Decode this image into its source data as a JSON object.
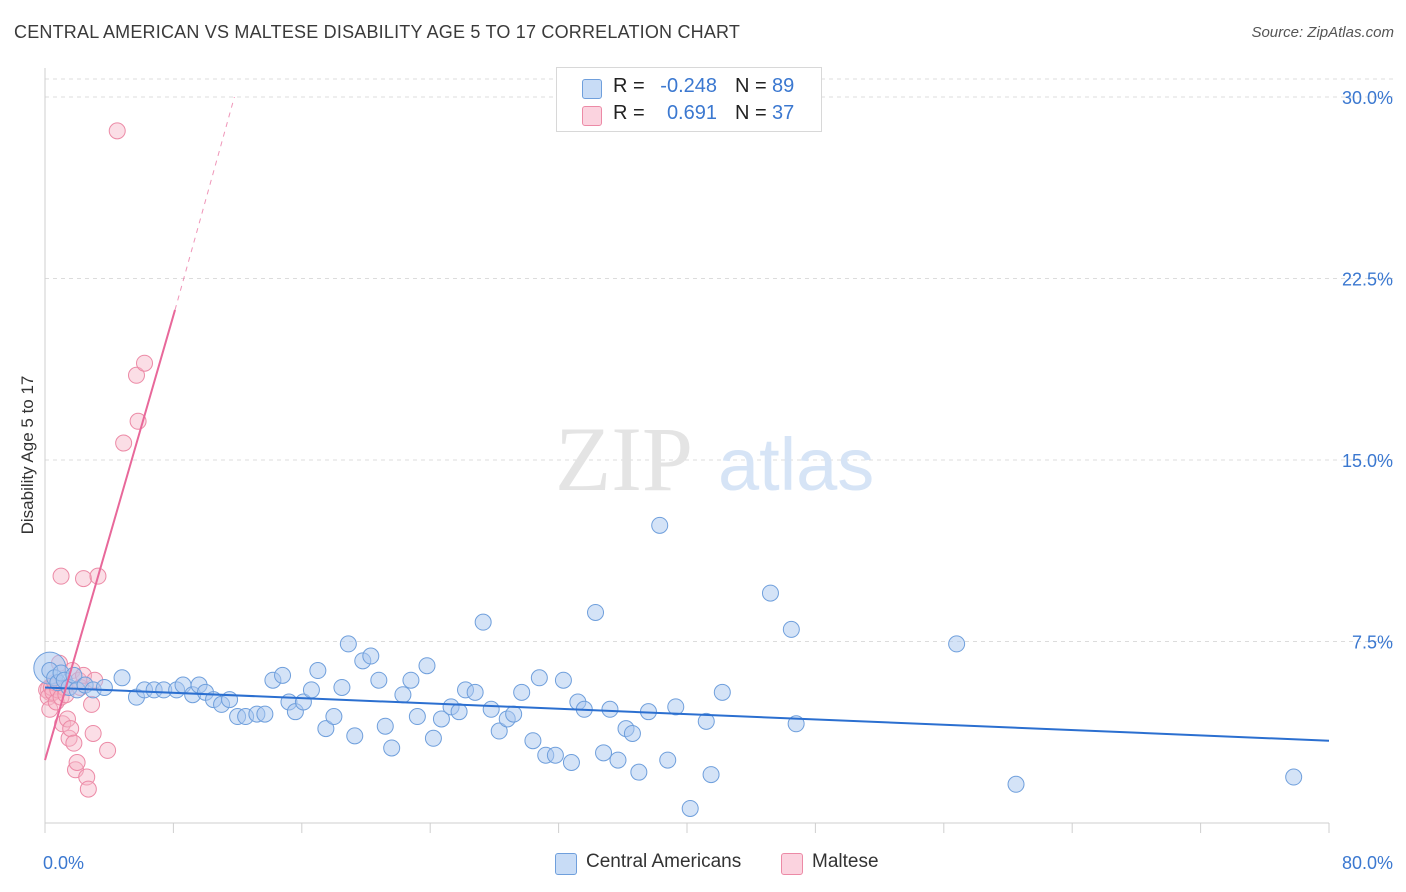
{
  "title": "CENTRAL AMERICAN VS MALTESE DISABILITY AGE 5 TO 17 CORRELATION CHART",
  "source": "Source: ZipAtlas.com",
  "watermark": {
    "zip": "ZIP",
    "atlas": "atlas"
  },
  "colors": {
    "blue_fill": "#a9c8f0",
    "blue_stroke": "#6f9fdc",
    "blue_line": "#2b6fd0",
    "pink_fill": "#f6b5c8",
    "pink_stroke": "#ec8aa6",
    "pink_line": "#e8689a",
    "grid": "#dcdcdc",
    "axis_text": "#3b78d0"
  },
  "legend_top": {
    "rows": [
      {
        "r_label": "R =",
        "r_value": "-0.248",
        "n_label": "N =",
        "n_value": "89"
      },
      {
        "r_label": "R =",
        "r_value": "0.691",
        "n_label": "N =",
        "n_value": "37"
      }
    ]
  },
  "legend_bottom": {
    "items": [
      "Central Americans",
      "Maltese"
    ]
  },
  "chart_data": {
    "type": "scatter",
    "title": "CENTRAL AMERICAN VS MALTESE DISABILITY AGE 5 TO 17 CORRELATION CHART",
    "xlabel": "",
    "ylabel": "Disability Age 5 to 17",
    "xlim": [
      0,
      80
    ],
    "ylim": [
      0,
      30.8
    ],
    "x_tick_labels": [
      "0.0%",
      "80.0%"
    ],
    "y_ticks": [
      7.5,
      15.0,
      22.5,
      30.0
    ],
    "y_tick_labels": [
      "7.5%",
      "15.0%",
      "22.5%",
      "30.0%"
    ],
    "grid": true,
    "legend_position": "top-center",
    "series": [
      {
        "name": "Central Americans",
        "r": -0.248,
        "n": 89,
        "trend": {
          "x": [
            0,
            80
          ],
          "y": [
            5.6,
            3.4
          ]
        },
        "points": [
          [
            0.3,
            6.3
          ],
          [
            0.6,
            6.0
          ],
          [
            0.8,
            5.8
          ],
          [
            1.0,
            6.2
          ],
          [
            1.2,
            5.9
          ],
          [
            1.5,
            5.6
          ],
          [
            1.8,
            6.1
          ],
          [
            2.0,
            5.5
          ],
          [
            2.5,
            5.7
          ],
          [
            3.0,
            5.5
          ],
          [
            3.7,
            5.6
          ],
          [
            4.8,
            6.0
          ],
          [
            5.7,
            5.2
          ],
          [
            6.2,
            5.5
          ],
          [
            6.8,
            5.5
          ],
          [
            7.4,
            5.5
          ],
          [
            8.2,
            5.5
          ],
          [
            8.6,
            5.7
          ],
          [
            9.2,
            5.3
          ],
          [
            9.6,
            5.7
          ],
          [
            10.0,
            5.4
          ],
          [
            10.5,
            5.1
          ],
          [
            11.0,
            4.9
          ],
          [
            11.5,
            5.1
          ],
          [
            12.0,
            4.4
          ],
          [
            12.5,
            4.4
          ],
          [
            13.2,
            4.5
          ],
          [
            13.7,
            4.5
          ],
          [
            14.2,
            5.9
          ],
          [
            14.8,
            6.1
          ],
          [
            15.2,
            5.0
          ],
          [
            15.6,
            4.6
          ],
          [
            16.1,
            5.0
          ],
          [
            16.6,
            5.5
          ],
          [
            17.0,
            6.3
          ],
          [
            17.5,
            3.9
          ],
          [
            18.0,
            4.4
          ],
          [
            18.5,
            5.6
          ],
          [
            18.9,
            7.4
          ],
          [
            19.3,
            3.6
          ],
          [
            19.8,
            6.7
          ],
          [
            20.3,
            6.9
          ],
          [
            20.8,
            5.9
          ],
          [
            21.2,
            4.0
          ],
          [
            21.6,
            3.1
          ],
          [
            22.3,
            5.3
          ],
          [
            22.8,
            5.9
          ],
          [
            23.2,
            4.4
          ],
          [
            23.8,
            6.5
          ],
          [
            24.2,
            3.5
          ],
          [
            24.7,
            4.3
          ],
          [
            25.3,
            4.8
          ],
          [
            25.8,
            4.6
          ],
          [
            26.2,
            5.5
          ],
          [
            26.8,
            5.4
          ],
          [
            27.3,
            8.3
          ],
          [
            27.8,
            4.7
          ],
          [
            28.3,
            3.8
          ],
          [
            28.8,
            4.3
          ],
          [
            29.2,
            4.5
          ],
          [
            29.7,
            5.4
          ],
          [
            30.4,
            3.4
          ],
          [
            30.8,
            6.0
          ],
          [
            31.2,
            2.8
          ],
          [
            31.8,
            2.8
          ],
          [
            32.3,
            5.9
          ],
          [
            32.8,
            2.5
          ],
          [
            33.2,
            5.0
          ],
          [
            33.6,
            4.7
          ],
          [
            34.3,
            8.7
          ],
          [
            34.8,
            2.9
          ],
          [
            35.2,
            4.7
          ],
          [
            35.7,
            2.6
          ],
          [
            36.2,
            3.9
          ],
          [
            36.6,
            3.7
          ],
          [
            37.0,
            2.1
          ],
          [
            37.6,
            4.6
          ],
          [
            38.3,
            12.3
          ],
          [
            38.8,
            2.6
          ],
          [
            39.3,
            4.8
          ],
          [
            40.2,
            0.6
          ],
          [
            41.2,
            4.2
          ],
          [
            41.5,
            2.0
          ],
          [
            42.2,
            5.4
          ],
          [
            45.2,
            9.5
          ],
          [
            46.5,
            8.0
          ],
          [
            46.8,
            4.1
          ],
          [
            56.8,
            7.4
          ],
          [
            60.5,
            1.6
          ],
          [
            77.8,
            1.9
          ]
        ]
      },
      {
        "name": "Maltese",
        "r": 0.691,
        "n": 37,
        "trend": {
          "x": [
            0,
            8.1
          ],
          "y": [
            2.6,
            21.2
          ]
        },
        "trend_extension": {
          "x": [
            8.1,
            11.8
          ],
          "y": [
            21.2,
            30.0
          ]
        },
        "points": [
          [
            0.1,
            5.5
          ],
          [
            0.2,
            5.2
          ],
          [
            0.3,
            4.7
          ],
          [
            0.4,
            5.6
          ],
          [
            0.5,
            5.4
          ],
          [
            0.6,
            5.8
          ],
          [
            0.7,
            5.0
          ],
          [
            0.8,
            5.5
          ],
          [
            0.9,
            6.6
          ],
          [
            1.0,
            5.2
          ],
          [
            1.1,
            4.1
          ],
          [
            1.2,
            5.6
          ],
          [
            1.3,
            5.3
          ],
          [
            1.4,
            4.3
          ],
          [
            1.5,
            3.5
          ],
          [
            1.6,
            3.9
          ],
          [
            1.7,
            6.3
          ],
          [
            1.8,
            3.3
          ],
          [
            1.9,
            2.2
          ],
          [
            2.0,
            2.5
          ],
          [
            2.1,
            5.9
          ],
          [
            2.2,
            5.6
          ],
          [
            2.4,
            6.1
          ],
          [
            2.6,
            1.9
          ],
          [
            2.7,
            1.4
          ],
          [
            2.9,
            4.9
          ],
          [
            3.0,
            3.7
          ],
          [
            3.1,
            5.9
          ],
          [
            1.0,
            10.2
          ],
          [
            2.4,
            10.1
          ],
          [
            3.3,
            10.2
          ],
          [
            3.9,
            3.0
          ],
          [
            4.5,
            28.6
          ],
          [
            4.9,
            15.7
          ],
          [
            5.7,
            18.5
          ],
          [
            5.8,
            16.6
          ],
          [
            6.2,
            19.0
          ]
        ]
      }
    ]
  }
}
